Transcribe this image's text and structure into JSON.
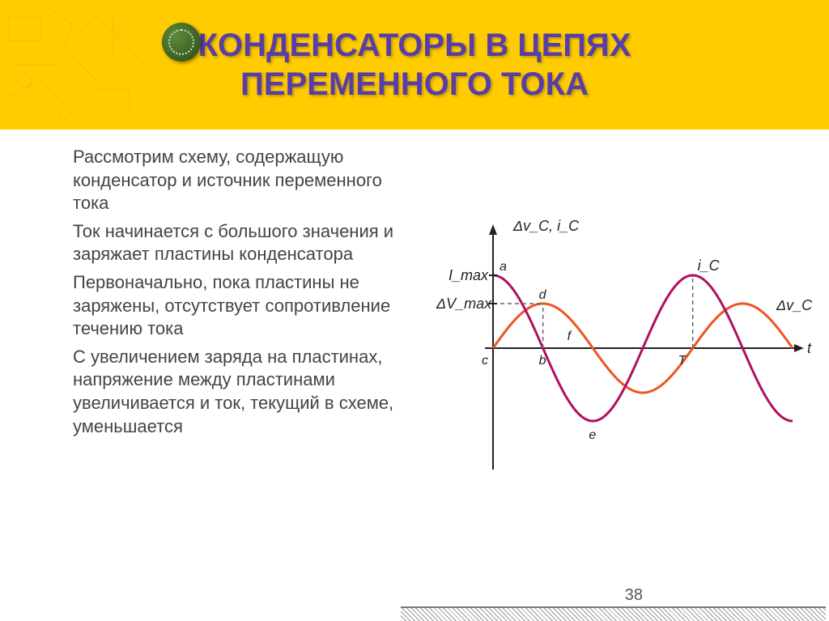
{
  "slide": {
    "title_line1": "КОНДЕНСАТОРЫ В ЦЕПЯХ",
    "title_line2": "ПЕРЕМЕННОГО ТОКА",
    "paragraphs": [
      "Рассмотрим схему, содержащую конденсатор и источник переменного тока",
      "Ток начинается с большого значения и заряжает пластины конденсатора",
      "Первоначально, пока пластины не заряжены, отсутствует сопротивление течению тока",
      "С увеличением заряда на пластинах, напряжение между пластинами увеличивается и ток, текущий в схеме, уменьшается"
    ],
    "page_number": "38"
  },
  "chart": {
    "type": "line",
    "y_axis_label": "Δv_C, i_C",
    "x_axis_label": "t",
    "labels": {
      "Imax": "I_max",
      "dVmax": "ΔV_max",
      "a": "a",
      "b": "b",
      "c": "c",
      "d": "d",
      "e": "e",
      "f": "f",
      "ic": "i_C",
      "dvc": "Δv_C",
      "T": "T"
    },
    "colors": {
      "current": "#b01060",
      "voltage": "#ee5522",
      "axis": "#222222",
      "dash": "#666666",
      "bg": "#ffffff"
    },
    "series": {
      "current": {
        "amplitude": 90,
        "phase": 0,
        "periods": 1.5,
        "stroke_width": 3
      },
      "voltage": {
        "amplitude": 55,
        "phase": 1.5708,
        "periods": 1.5,
        "stroke_width": 3
      }
    },
    "axis_origin_x": 95,
    "axis_origin_y": 200,
    "axis_width": 370,
    "axis_height_up": 150,
    "axis_height_down": 150,
    "font_size_label": 18,
    "font_size_point": 16
  },
  "palette": {
    "banner_bg": "#ffcc00",
    "title_color": "#5a3ea8",
    "text_color": "#444444"
  }
}
